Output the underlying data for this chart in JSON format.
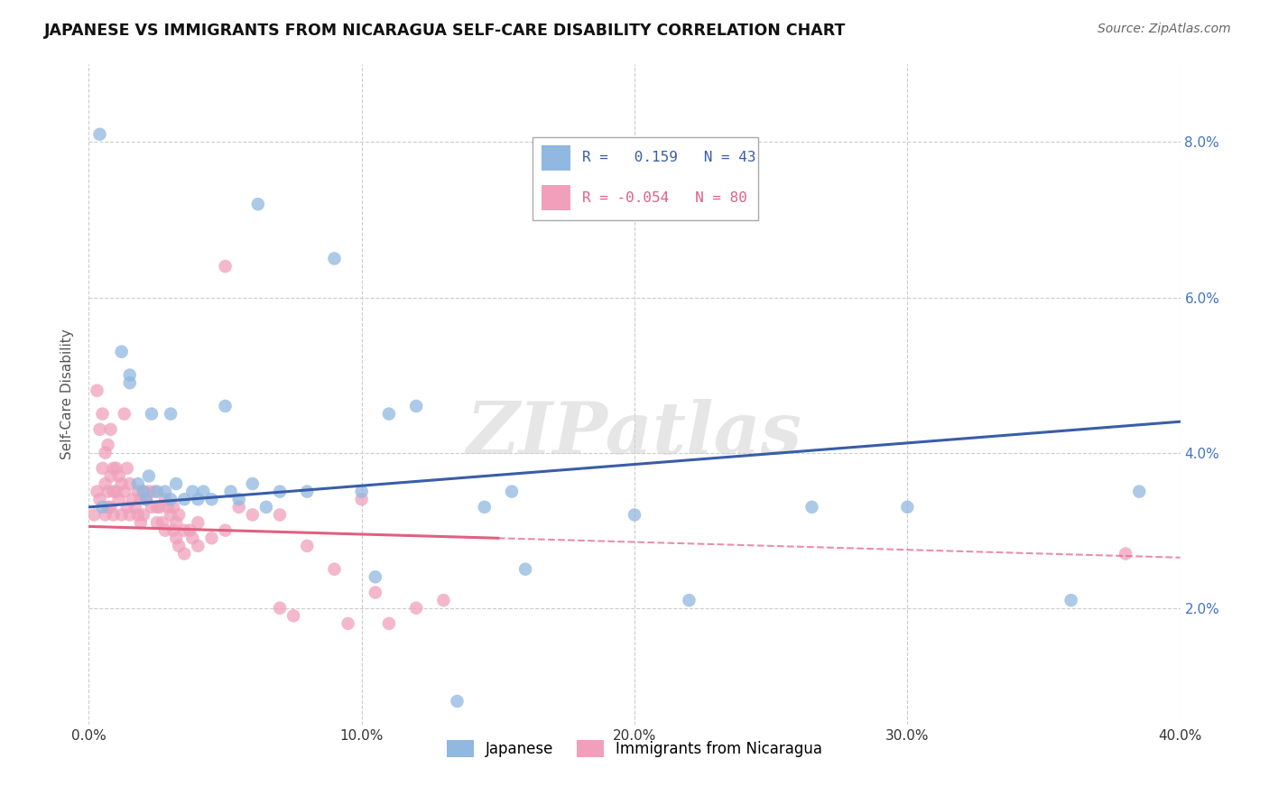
{
  "title": "JAPANESE VS IMMIGRANTS FROM NICARAGUA SELF-CARE DISABILITY CORRELATION CHART",
  "source": "Source: ZipAtlas.com",
  "ylabel": "Self-Care Disability",
  "xlim": [
    0.0,
    40.0
  ],
  "ylim": [
    0.5,
    9.0
  ],
  "ytick_vals": [
    2.0,
    4.0,
    6.0,
    8.0
  ],
  "xtick_vals": [
    0,
    10,
    20,
    30,
    40
  ],
  "bg_color": "#ffffff",
  "grid_color": "#cccccc",
  "trend_jp_color": "#3a5da8",
  "trend_ni_color": "#e06080",
  "jp_color": "#90b8e0",
  "ni_color": "#f0a0bb",
  "ytick_color": "#4472c4",
  "watermark": "ZIPatlas",
  "series_japanese": [
    [
      0.4,
      8.1
    ],
    [
      0.5,
      3.3
    ],
    [
      1.2,
      5.3
    ],
    [
      1.5,
      5.0
    ],
    [
      1.5,
      4.9
    ],
    [
      1.8,
      3.6
    ],
    [
      2.0,
      3.5
    ],
    [
      2.1,
      3.4
    ],
    [
      2.2,
      3.7
    ],
    [
      2.3,
      4.5
    ],
    [
      2.5,
      3.5
    ],
    [
      2.8,
      3.5
    ],
    [
      3.0,
      3.4
    ],
    [
      3.0,
      4.5
    ],
    [
      3.2,
      3.6
    ],
    [
      3.5,
      3.4
    ],
    [
      3.8,
      3.5
    ],
    [
      4.0,
      3.4
    ],
    [
      4.2,
      3.5
    ],
    [
      4.5,
      3.4
    ],
    [
      5.0,
      4.6
    ],
    [
      5.2,
      3.5
    ],
    [
      5.5,
      3.4
    ],
    [
      6.0,
      3.6
    ],
    [
      6.2,
      7.2
    ],
    [
      6.5,
      3.3
    ],
    [
      7.0,
      3.5
    ],
    [
      8.0,
      3.5
    ],
    [
      9.0,
      6.5
    ],
    [
      10.0,
      3.5
    ],
    [
      10.5,
      2.4
    ],
    [
      11.0,
      4.5
    ],
    [
      12.0,
      4.6
    ],
    [
      13.5,
      0.8
    ],
    [
      14.5,
      3.3
    ],
    [
      15.5,
      3.5
    ],
    [
      16.0,
      2.5
    ],
    [
      20.0,
      3.2
    ],
    [
      22.0,
      2.1
    ],
    [
      26.5,
      3.3
    ],
    [
      30.0,
      3.3
    ],
    [
      36.0,
      2.1
    ],
    [
      38.5,
      3.5
    ]
  ],
  "series_nicaragua": [
    [
      0.2,
      3.2
    ],
    [
      0.3,
      3.5
    ],
    [
      0.3,
      4.8
    ],
    [
      0.4,
      4.3
    ],
    [
      0.4,
      3.4
    ],
    [
      0.5,
      4.5
    ],
    [
      0.5,
      3.8
    ],
    [
      0.6,
      4.0
    ],
    [
      0.6,
      3.6
    ],
    [
      0.6,
      3.2
    ],
    [
      0.7,
      4.1
    ],
    [
      0.7,
      3.5
    ],
    [
      0.7,
      3.3
    ],
    [
      0.8,
      4.3
    ],
    [
      0.8,
      3.7
    ],
    [
      0.8,
      3.3
    ],
    [
      0.9,
      3.8
    ],
    [
      0.9,
      3.5
    ],
    [
      0.9,
      3.2
    ],
    [
      1.0,
      3.8
    ],
    [
      1.0,
      3.5
    ],
    [
      1.1,
      3.7
    ],
    [
      1.1,
      3.4
    ],
    [
      1.2,
      3.6
    ],
    [
      1.2,
      3.2
    ],
    [
      1.3,
      4.5
    ],
    [
      1.3,
      3.5
    ],
    [
      1.4,
      3.8
    ],
    [
      1.4,
      3.3
    ],
    [
      1.5,
      3.6
    ],
    [
      1.5,
      3.2
    ],
    [
      1.6,
      3.4
    ],
    [
      1.7,
      3.3
    ],
    [
      1.8,
      3.5
    ],
    [
      1.8,
      3.2
    ],
    [
      1.9,
      3.4
    ],
    [
      1.9,
      3.1
    ],
    [
      2.0,
      3.5
    ],
    [
      2.0,
      3.2
    ],
    [
      2.1,
      3.4
    ],
    [
      2.2,
      3.5
    ],
    [
      2.3,
      3.3
    ],
    [
      2.4,
      3.5
    ],
    [
      2.5,
      3.3
    ],
    [
      2.5,
      3.1
    ],
    [
      2.6,
      3.3
    ],
    [
      2.7,
      3.1
    ],
    [
      2.8,
      3.4
    ],
    [
      2.8,
      3.0
    ],
    [
      2.9,
      3.3
    ],
    [
      3.0,
      3.2
    ],
    [
      3.1,
      3.3
    ],
    [
      3.1,
      3.0
    ],
    [
      3.2,
      3.1
    ],
    [
      3.2,
      2.9
    ],
    [
      3.3,
      3.2
    ],
    [
      3.3,
      2.8
    ],
    [
      3.5,
      3.0
    ],
    [
      3.5,
      2.7
    ],
    [
      3.7,
      3.0
    ],
    [
      3.8,
      2.9
    ],
    [
      4.0,
      3.1
    ],
    [
      4.0,
      2.8
    ],
    [
      4.5,
      2.9
    ],
    [
      5.0,
      3.0
    ],
    [
      5.0,
      6.4
    ],
    [
      5.5,
      3.3
    ],
    [
      6.0,
      3.2
    ],
    [
      7.0,
      3.2
    ],
    [
      7.0,
      2.0
    ],
    [
      7.5,
      1.9
    ],
    [
      8.0,
      2.8
    ],
    [
      9.0,
      2.5
    ],
    [
      9.5,
      1.8
    ],
    [
      10.0,
      3.4
    ],
    [
      10.5,
      2.2
    ],
    [
      11.0,
      1.8
    ],
    [
      12.0,
      2.0
    ],
    [
      13.0,
      2.1
    ],
    [
      38.0,
      2.7
    ]
  ],
  "trend_jp_x0": 0.0,
  "trend_jp_x1": 40.0,
  "trend_jp_y0": 3.3,
  "trend_jp_y1": 4.4,
  "trend_ni_x0": 0.0,
  "trend_ni_solid_end": 15.0,
  "trend_ni_x1": 40.0,
  "trend_ni_y0": 3.05,
  "trend_ni_y1": 2.65
}
